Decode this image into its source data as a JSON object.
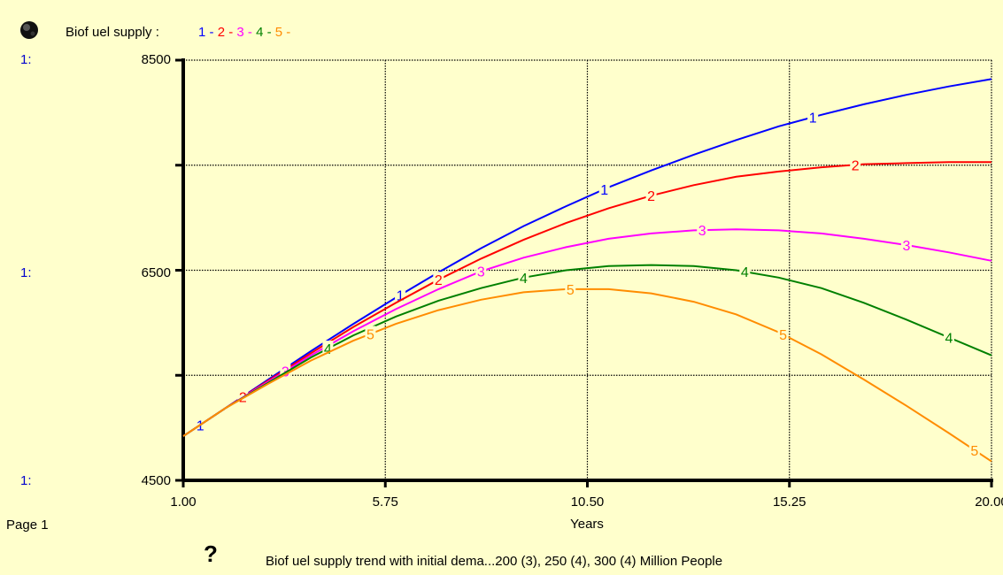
{
  "header": {
    "icon": "globe-icon",
    "var_name": "Biof uel supply :",
    "legend_items": [
      {
        "label": "1 -",
        "color": "#0000FF"
      },
      {
        "label": "2 -",
        "color": "#FF0000"
      },
      {
        "label": "3 -",
        "color": "#FF00FF"
      },
      {
        "label": "4 -",
        "color": "#008000"
      },
      {
        "label": "5 -",
        "color": "#FF8C00"
      }
    ]
  },
  "axis_scale_labels": [
    "1:",
    "1:",
    "1:"
  ],
  "page_label": "Page 1",
  "help_icon": "question-icon",
  "caption": "Biof uel supply  trend with initial dema...200 (3), 250 (4), 300 (4) Million People",
  "chart_data": {
    "type": "line",
    "title": "",
    "xlabel": "Years",
    "ylabel": "",
    "xlim": [
      1,
      20
    ],
    "ylim": [
      4500,
      8500
    ],
    "x_ticks": [
      1,
      5.75,
      10.5,
      15.25,
      20
    ],
    "x_tick_labels": [
      "1.00",
      "5.75",
      "10.50",
      "15.25",
      "20.00"
    ],
    "y_tick_labels": [
      "8500",
      "6500",
      "4500"
    ],
    "y_ticks": [
      8500,
      6500,
      4500
    ],
    "y_minor_gridlines": [
      7500,
      5500
    ],
    "grid": true,
    "x": [
      1,
      2,
      3,
      4,
      5,
      6,
      7,
      8,
      9,
      10,
      11,
      12,
      13,
      14,
      15,
      16,
      17,
      18,
      19,
      20
    ],
    "series": [
      {
        "name": "1",
        "color": "#0000FF",
        "values": [
          4920,
          5190,
          5460,
          5730,
          5990,
          6240,
          6480,
          6710,
          6920,
          7110,
          7290,
          7450,
          7600,
          7740,
          7870,
          7980,
          8080,
          8170,
          8250,
          8320
        ],
        "marker_x": [
          1.4,
          6.1,
          10.9,
          15.8
        ]
      },
      {
        "name": "2",
        "color": "#FF0000",
        "values": [
          4920,
          5190,
          5450,
          5710,
          5960,
          6190,
          6410,
          6610,
          6790,
          6950,
          7090,
          7210,
          7310,
          7390,
          7440,
          7480,
          7510,
          7520,
          7530,
          7530
        ],
        "marker_x": [
          2.4,
          7.0,
          12.0,
          16.8
        ]
      },
      {
        "name": "3",
        "color": "#FF00FF",
        "values": [
          4920,
          5190,
          5440,
          5690,
          5920,
          6130,
          6320,
          6490,
          6620,
          6720,
          6800,
          6850,
          6880,
          6890,
          6880,
          6850,
          6800,
          6740,
          6670,
          6590
        ],
        "marker_x": [
          3.4,
          8.0,
          13.2,
          18.0
        ]
      },
      {
        "name": "4",
        "color": "#008000",
        "values": [
          4920,
          5190,
          5430,
          5670,
          5880,
          6060,
          6210,
          6330,
          6430,
          6500,
          6540,
          6550,
          6540,
          6500,
          6430,
          6330,
          6190,
          6030,
          5860,
          5690
        ],
        "marker_x": [
          4.4,
          9.0,
          14.2,
          19.0
        ]
      },
      {
        "name": "5",
        "color": "#FF8C00",
        "values": [
          4920,
          5190,
          5420,
          5640,
          5830,
          5990,
          6120,
          6220,
          6290,
          6320,
          6320,
          6280,
          6200,
          6080,
          5910,
          5700,
          5460,
          5210,
          4950,
          4680
        ],
        "marker_x": [
          5.4,
          10.1,
          15.1,
          19.6
        ]
      }
    ]
  }
}
